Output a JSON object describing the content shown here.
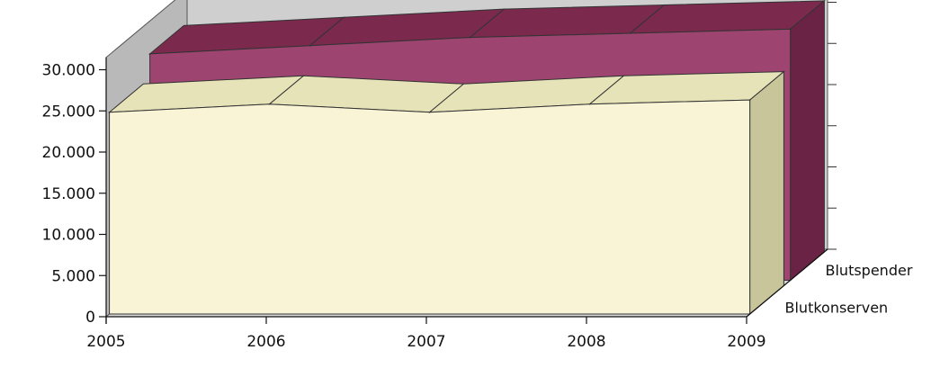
{
  "chart_data": {
    "type": "area",
    "view": "3d",
    "categories": [
      "2005",
      "2006",
      "2007",
      "2008",
      "2009"
    ],
    "series": [
      {
        "name": "Blutspender",
        "values": [
          27500,
          28500,
          29500,
          30000,
          30500
        ],
        "color": "#9e4470",
        "top_color": "#7b2a4e",
        "side_color": "#6a2344"
      },
      {
        "name": "Blutkonserven",
        "values": [
          24500,
          25500,
          24500,
          25500,
          26000
        ],
        "color": "#faf4d6",
        "top_color": "#e7e3b8",
        "side_color": "#c8c59a"
      }
    ],
    "y_ticks": [
      "0",
      "5.000",
      "10.000",
      "15.000",
      "20.000",
      "25.000",
      "30.000"
    ],
    "ylim": [
      0,
      30000
    ],
    "grid": false,
    "wall_color": "#cfcfcf",
    "floor_color": "#d8d8d8"
  }
}
